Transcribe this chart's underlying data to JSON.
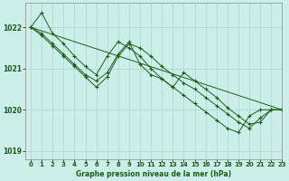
{
  "title": "Graphe pression niveau de la mer (hPa)",
  "bg_color": "#cceee8",
  "grid_color": "#aad4cc",
  "line_color": "#1a5c1a",
  "xlim": [
    -0.5,
    23
  ],
  "ylim": [
    1018.8,
    1022.6
  ],
  "yticks": [
    1019,
    1020,
    1021,
    1022
  ],
  "xtick_labels": [
    "0",
    "1",
    "2",
    "3",
    "4",
    "5",
    "6",
    "7",
    "8",
    "9",
    "10",
    "11",
    "12",
    "13",
    "14",
    "15",
    "16",
    "17",
    "18",
    "19",
    "20",
    "21",
    "22",
    "23"
  ],
  "series": [
    {
      "x": [
        0,
        1,
        2,
        3,
        4,
        5,
        6,
        7,
        8,
        9,
        10,
        11,
        12,
        13,
        14,
        15,
        16,
        17,
        18,
        19,
        20,
        21,
        22,
        23
      ],
      "y": [
        1022.0,
        1022.35,
        1021.85,
        1021.6,
        1021.3,
        1021.05,
        1020.85,
        1021.3,
        1021.65,
        1021.5,
        1021.3,
        1021.0,
        1020.75,
        1020.55,
        1020.35,
        1020.15,
        1019.95,
        1019.75,
        1019.55,
        1019.45,
        1019.85,
        1020.0,
        1020.0,
        1020.0
      ],
      "marker": true
    },
    {
      "x": [
        0,
        1,
        2,
        3,
        4,
        5,
        6,
        7,
        8,
        9,
        10,
        11,
        12,
        13,
        14,
        15,
        16,
        17,
        18,
        19,
        20,
        21,
        22,
        23
      ],
      "y": [
        1022.0,
        1021.85,
        1021.6,
        1021.35,
        1021.1,
        1020.85,
        1020.7,
        1020.9,
        1021.35,
        1021.65,
        1021.1,
        1020.85,
        1020.75,
        1020.55,
        1020.9,
        1020.7,
        1020.5,
        1020.3,
        1020.05,
        1019.85,
        1019.65,
        1019.7,
        1020.0,
        1020.0
      ],
      "marker": true
    },
    {
      "x": [
        0,
        1,
        2,
        3,
        4,
        5,
        6,
        7,
        8,
        9,
        10,
        11,
        12,
        13,
        14,
        15,
        16,
        17,
        18,
        19,
        20,
        21,
        22,
        23
      ],
      "y": [
        1022.0,
        1021.8,
        1021.55,
        1021.3,
        1021.05,
        1020.8,
        1020.55,
        1020.8,
        1021.3,
        1021.6,
        1021.5,
        1021.3,
        1021.05,
        1020.85,
        1020.65,
        1020.5,
        1020.3,
        1020.1,
        1019.9,
        1019.7,
        1019.55,
        1019.8,
        1020.0,
        1020.0
      ],
      "marker": true
    },
    {
      "x": [
        0,
        23
      ],
      "y": [
        1022.0,
        1020.0
      ],
      "marker": false
    }
  ]
}
